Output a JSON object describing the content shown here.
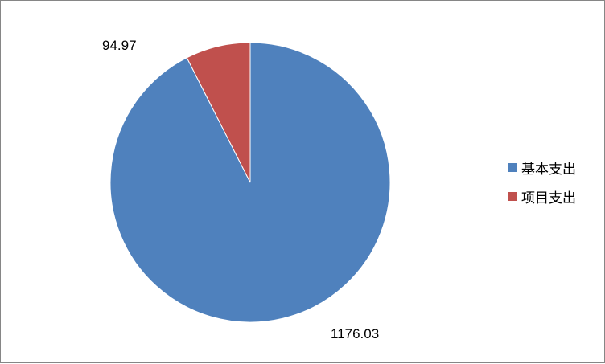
{
  "chart_data": {
    "type": "pie",
    "categories": [
      "基本支出",
      "项目支出"
    ],
    "values": [
      1176.03,
      94.97
    ],
    "data_labels": [
      "1176.03",
      "94.97"
    ],
    "colors": [
      "#4F81BD",
      "#C0504D"
    ],
    "start_angle": "12 o'clock, clockwise",
    "legend": "right"
  }
}
